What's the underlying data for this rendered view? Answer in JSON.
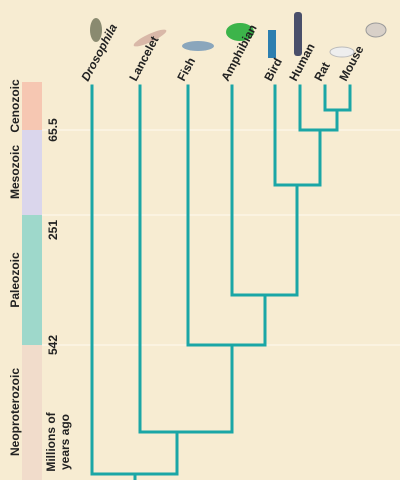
{
  "taxa": [
    "Drosophila",
    "Lancelet",
    "Fish",
    "Amphibian",
    "Bird",
    "Human",
    "Rat",
    "Mouse"
  ],
  "eras": [
    "Cenozoic",
    "Mesozoic",
    "Paleozoic",
    "Neoproterozoic"
  ],
  "times": [
    "65.5",
    "251",
    "542"
  ],
  "axis_label": [
    "Millions of",
    "years ago"
  ]
}
